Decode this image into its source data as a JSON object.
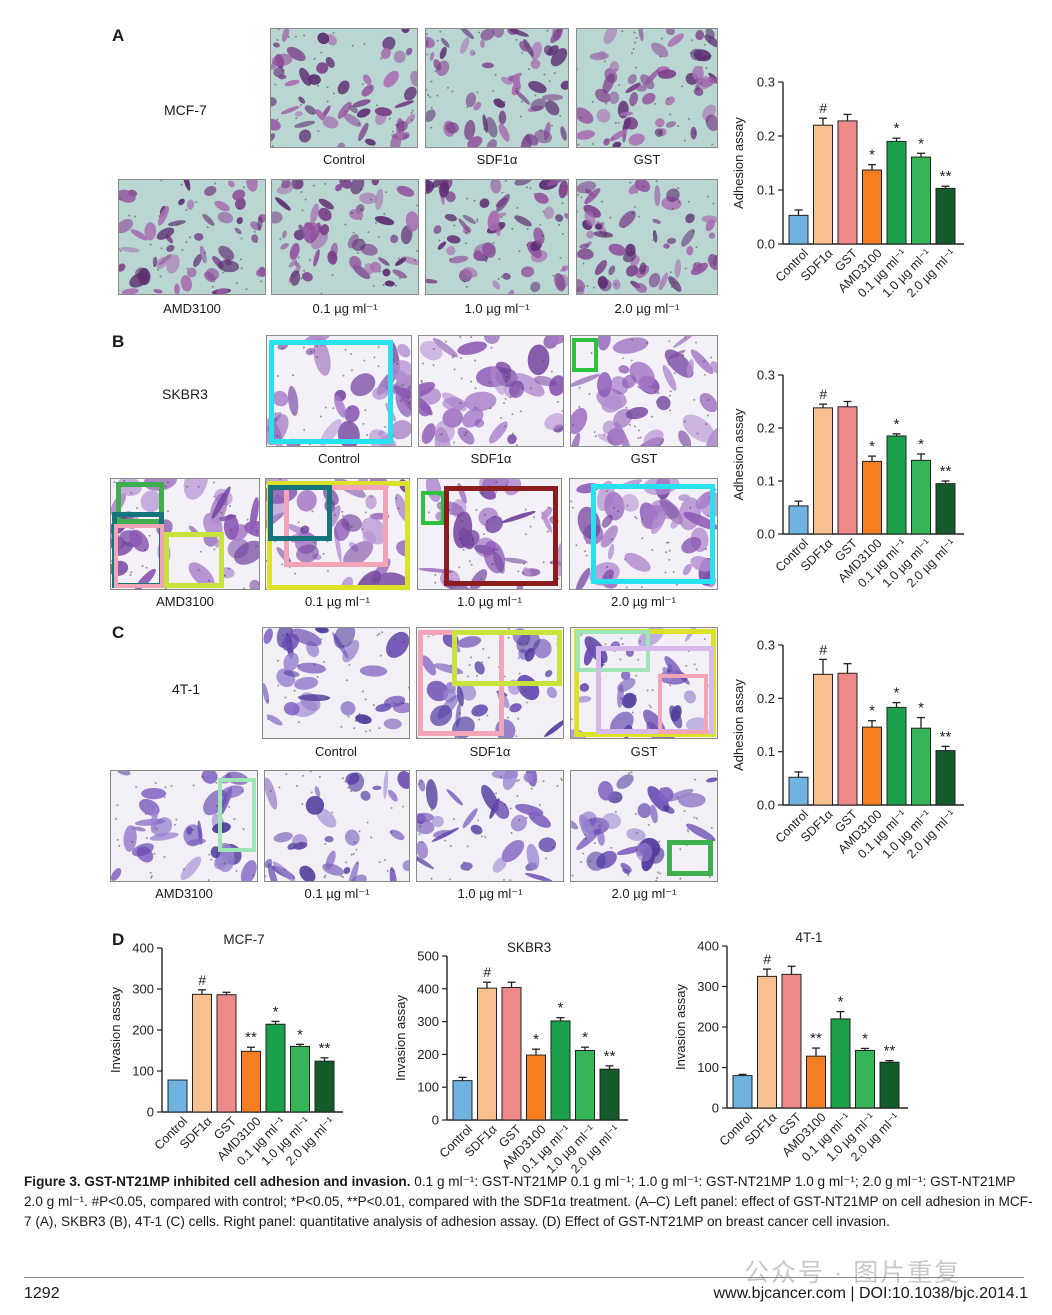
{
  "panels": {
    "A": {
      "letter": "A",
      "cell_line": "MCF-7",
      "top_captions": [
        "Control",
        "SDF1α",
        "GST"
      ],
      "bottom_captions": [
        "AMD3100",
        "0.1 µg ml⁻¹",
        "1.0 µg ml⁻¹",
        "2.0 µg ml⁻¹"
      ]
    },
    "B": {
      "letter": "B",
      "cell_line": "SKBR3",
      "top_captions": [
        "Control",
        "SDF1α",
        "GST"
      ],
      "bottom_captions": [
        "AMD3100",
        "0.1 µg ml⁻¹",
        "1.0 µg ml⁻¹",
        "2.0 µg ml⁻¹"
      ]
    },
    "C": {
      "letter": "C",
      "cell_line": "4T-1",
      "top_captions": [
        "Control",
        "SDF1α",
        "GST"
      ],
      "bottom_captions": [
        "AMD3100",
        "0.1 µg ml⁻¹",
        "1.0 µg ml⁻¹",
        "2.0 µg ml⁻¹"
      ]
    },
    "D": {
      "letter": "D"
    }
  },
  "colors": {
    "bars": [
      "#6fb3e3",
      "#f8c08e",
      "#f08a8a",
      "#f47f22",
      "#1aa149",
      "#35b458",
      "#145b2c"
    ],
    "overlay_cyan": "#27e1ee",
    "overlay_teal": "#15757a",
    "overlay_green": "#2cc23e",
    "overlay_lime": "#c8e43c",
    "overlay_pink": "#f2a5b7",
    "overlay_yellow": "#dbe227",
    "overlay_maroon": "#8c1d1d",
    "overlay_mint": "#9fe6b6",
    "overlay_lilac": "#d6b9ea",
    "overlay_dkgreen": "#3fae4c"
  },
  "chart_data": [
    {
      "id": "adh-A",
      "type": "bar",
      "categories": [
        "Control",
        "SDF1α",
        "GST",
        "AMD3100",
        "0.1 µg ml⁻¹",
        "1.0 µg ml⁻¹",
        "2.0 µg ml⁻¹"
      ],
      "values": [
        0.053,
        0.22,
        0.228,
        0.137,
        0.19,
        0.161,
        0.103
      ],
      "errors": [
        0.01,
        0.013,
        0.012,
        0.01,
        0.006,
        0.007,
        0.004
      ],
      "annotations": [
        "",
        "#",
        "",
        "*",
        "*",
        "*",
        "**"
      ],
      "ylabel": "Adhesion assay",
      "ylim": [
        0,
        0.3
      ],
      "yticks": [
        "0.0",
        "0.1",
        "0.2",
        "0.3"
      ]
    },
    {
      "id": "adh-B",
      "type": "bar",
      "categories": [
        "Control",
        "SDF1α",
        "GST",
        "AMD3100",
        "0.1 µg ml⁻¹",
        "1.0 µg ml⁻¹",
        "2.0 µg ml⁻¹"
      ],
      "values": [
        0.053,
        0.238,
        0.24,
        0.137,
        0.185,
        0.139,
        0.095
      ],
      "errors": [
        0.009,
        0.007,
        0.01,
        0.01,
        0.004,
        0.012,
        0.005
      ],
      "annotations": [
        "",
        "#",
        "",
        "*",
        "*",
        "*",
        "**"
      ],
      "ylabel": "Adhesion assay",
      "ylim": [
        0,
        0.3
      ],
      "yticks": [
        "0.0",
        "0.1",
        "0.2",
        "0.3"
      ]
    },
    {
      "id": "adh-C",
      "type": "bar",
      "categories": [
        "Control",
        "SDF1α",
        "GST",
        "AMD3100",
        "0.1 µg ml⁻¹",
        "1.0 µg ml⁻¹",
        "2.0 µg ml⁻¹"
      ],
      "values": [
        0.052,
        0.245,
        0.247,
        0.146,
        0.183,
        0.144,
        0.102
      ],
      "errors": [
        0.01,
        0.028,
        0.018,
        0.012,
        0.009,
        0.02,
        0.008
      ],
      "annotations": [
        "",
        "#",
        "",
        "*",
        "*",
        "*",
        "**"
      ],
      "ylabel": "Adhesion assay",
      "ylim": [
        0,
        0.3
      ],
      "yticks": [
        "0.0",
        "0.1",
        "0.2",
        "0.3"
      ]
    },
    {
      "id": "inv-MCF7",
      "type": "bar",
      "title": "MCF-7",
      "categories": [
        "Control",
        "SDF1α",
        "GST",
        "AMD3100",
        "0.1 µg ml⁻¹",
        "1.0 µg ml⁻¹",
        "2.0 µg ml⁻¹"
      ],
      "values": [
        78,
        287,
        286,
        148,
        214,
        160,
        124
      ],
      "errors": [
        0,
        11,
        6,
        10,
        7,
        5,
        8
      ],
      "annotations": [
        "",
        "#",
        "",
        "**",
        "*",
        "*",
        "**"
      ],
      "ylabel": "Invasion assay",
      "ylim": [
        0,
        400
      ],
      "yticks": [
        "0",
        "100",
        "200",
        "300",
        "400"
      ]
    },
    {
      "id": "inv-SKBR3",
      "type": "bar",
      "title": "SKBR3",
      "categories": [
        "Control",
        "SDF1α",
        "GST",
        "AMD3100",
        "0.1 µg ml⁻¹",
        "1.0 µg ml⁻¹",
        "2.0 µg ml⁻¹"
      ],
      "values": [
        120,
        402,
        404,
        198,
        302,
        212,
        155
      ],
      "errors": [
        10,
        18,
        16,
        18,
        10,
        10,
        10
      ],
      "annotations": [
        "",
        "#",
        "",
        "*",
        "*",
        "*",
        "**"
      ],
      "ylabel": "Invasion assay",
      "ylim": [
        0,
        500
      ],
      "yticks": [
        "0",
        "100",
        "200",
        "300",
        "400",
        "500"
      ]
    },
    {
      "id": "inv-4T1",
      "type": "bar",
      "title": "4T-1",
      "categories": [
        "Control",
        "SDF1α",
        "GST",
        "AMD3100",
        "0.1 µg ml⁻¹",
        "1.0 µg ml⁻¹",
        "2.0 µg ml⁻¹"
      ],
      "values": [
        80,
        325,
        330,
        128,
        220,
        142,
        113
      ],
      "errors": [
        3,
        18,
        20,
        20,
        18,
        5,
        4
      ],
      "annotations": [
        "",
        "#",
        "",
        "**",
        "*",
        "*",
        "**"
      ],
      "ylabel": "Invasion assay",
      "ylim": [
        0,
        400
      ],
      "yticks": [
        "0",
        "100",
        "200",
        "300",
        "400"
      ]
    }
  ],
  "caption": {
    "title": "Figure 3. GST-NT21MP inhibited cell adhesion and invasion.",
    "body": "0.1 g ml⁻¹: GST-NT21MP 0.1 g ml⁻¹; 1.0 g ml⁻¹: GST-NT21MP 1.0 g ml⁻¹; 2.0 g ml⁻¹: GST-NT21MP 2.0 g ml⁻¹. #P<0.05, compared with control; *P<0.05, **P<0.01, compared with the SDF1α treatment. (A–C) Left panel: effect of GST-NT21MP on cell adhesion in MCF-7 (A), SKBR3 (B), 4T-1 (C) cells. Right panel: quantitative analysis of adhesion assay. (D) Effect of GST-NT21MP on breast cancer cell invasion."
  },
  "footer": {
    "page": "1292",
    "doi": "www.bjcancer.com | DOI:10.1038/bjc.2014.1",
    "watermark": "公众号 · 图片重复"
  }
}
